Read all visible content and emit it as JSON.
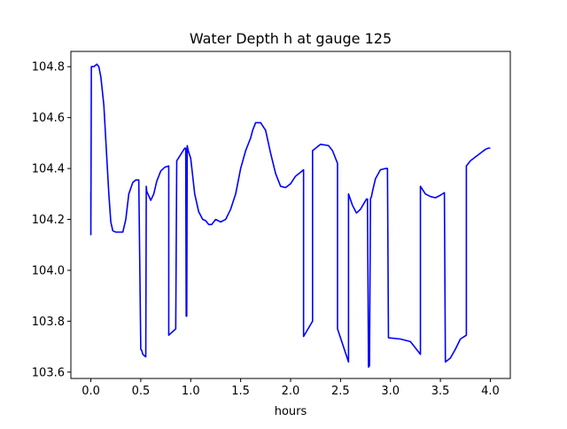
{
  "chart_data": {
    "type": "line",
    "title": "Water Depth h at gauge 125",
    "xlabel": "hours",
    "ylabel": "",
    "xlim": [
      -0.2,
      4.2
    ],
    "ylim": [
      103.575,
      104.86
    ],
    "xticks": [
      0.0,
      0.5,
      1.0,
      1.5,
      2.0,
      2.5,
      3.0,
      3.5,
      4.0
    ],
    "xtick_labels": [
      "0.0",
      "0.5",
      "1.0",
      "1.5",
      "2.0",
      "2.5",
      "3.0",
      "3.5",
      "4.0"
    ],
    "yticks": [
      103.6,
      103.8,
      104.0,
      104.2,
      104.4,
      104.6,
      104.8
    ],
    "ytick_labels": [
      "103.6",
      "103.8",
      "104.0",
      "104.2",
      "104.4",
      "104.6",
      "104.8"
    ],
    "grid": false,
    "legend": "none",
    "series": [
      {
        "color": "#0000ff",
        "x": [
          0.0,
          0.0,
          0.005,
          0.01,
          0.03,
          0.06,
          0.08,
          0.1,
          0.13,
          0.16,
          0.18,
          0.2,
          0.22,
          0.25,
          0.28,
          0.32,
          0.35,
          0.38,
          0.42,
          0.45,
          0.48,
          0.5,
          0.51,
          0.52,
          0.55,
          0.555,
          0.56,
          0.6,
          0.63,
          0.66,
          0.7,
          0.74,
          0.78,
          0.78,
          0.85,
          0.86,
          0.94,
          0.95,
          0.955,
          0.96,
          0.965,
          0.97,
          0.975,
          1.0,
          1.04,
          1.08,
          1.12,
          1.15,
          1.18,
          1.21,
          1.25,
          1.3,
          1.35,
          1.4,
          1.45,
          1.5,
          1.55,
          1.6,
          1.62,
          1.65,
          1.7,
          1.75,
          1.8,
          1.85,
          1.9,
          1.95,
          2.0,
          2.05,
          2.1,
          2.13,
          2.13,
          2.22,
          2.22,
          2.3,
          2.38,
          2.42,
          2.47,
          2.47,
          2.58,
          2.58,
          2.62,
          2.66,
          2.7,
          2.76,
          2.77,
          2.78,
          2.79,
          2.8,
          2.8,
          2.81,
          2.82,
          2.85,
          2.9,
          2.95,
          2.97,
          2.98,
          3.1,
          3.2,
          3.3,
          3.3,
          3.35,
          3.4,
          3.45,
          3.5,
          3.54,
          3.55,
          3.6,
          3.65,
          3.7,
          3.76,
          3.76,
          3.8,
          3.85,
          3.9,
          3.95,
          3.98,
          4.0
        ],
        "y": [
          104.31,
          104.14,
          104.8,
          104.8,
          104.8,
          104.81,
          104.8,
          104.76,
          104.65,
          104.44,
          104.3,
          104.19,
          104.155,
          104.15,
          104.15,
          104.15,
          104.2,
          104.3,
          104.345,
          104.355,
          104.355,
          103.69,
          103.685,
          103.67,
          103.66,
          104.33,
          104.31,
          104.275,
          104.3,
          104.35,
          104.39,
          104.405,
          104.41,
          103.745,
          103.77,
          104.43,
          104.48,
          104.48,
          103.82,
          103.82,
          104.49,
          104.48,
          104.47,
          104.44,
          104.3,
          104.23,
          104.2,
          104.195,
          104.18,
          104.18,
          104.2,
          104.19,
          104.2,
          104.24,
          104.3,
          104.4,
          104.47,
          104.52,
          104.55,
          104.58,
          104.58,
          104.55,
          104.46,
          104.38,
          104.33,
          104.325,
          104.34,
          104.37,
          104.385,
          104.395,
          103.74,
          103.8,
          104.47,
          104.495,
          104.49,
          104.47,
          104.42,
          103.77,
          103.64,
          104.3,
          104.255,
          104.225,
          104.24,
          104.28,
          104.28,
          103.62,
          103.625,
          104.28,
          104.28,
          104.29,
          104.31,
          104.36,
          104.395,
          104.4,
          104.4,
          103.735,
          103.73,
          103.72,
          103.67,
          104.33,
          104.3,
          104.29,
          104.285,
          104.295,
          104.305,
          103.64,
          103.655,
          103.69,
          103.73,
          103.745,
          104.41,
          104.43,
          104.445,
          104.46,
          104.475,
          104.48,
          104.48
        ]
      }
    ]
  }
}
